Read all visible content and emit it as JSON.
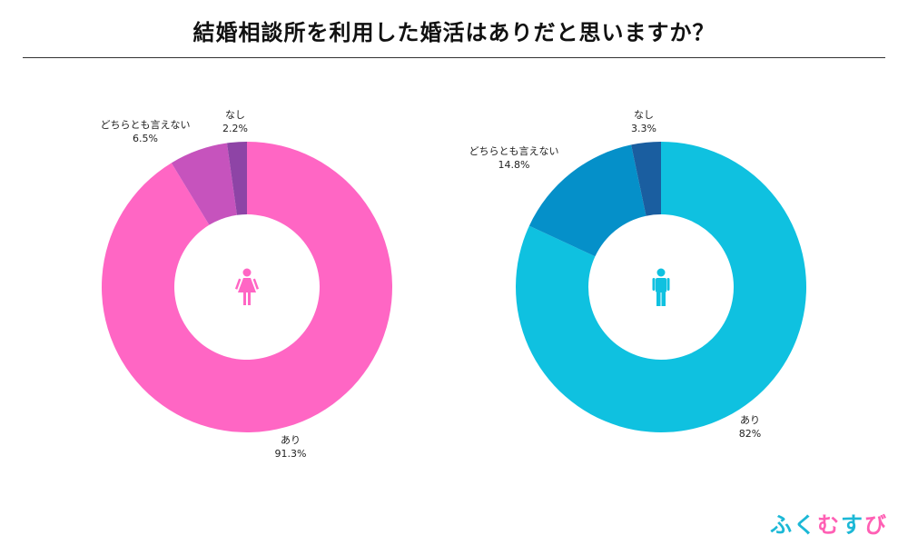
{
  "title": "結婚相談所を利用した婚活はありだと思いますか？",
  "brand": {
    "chars": [
      "ふ",
      "く",
      "む",
      "す",
      "び"
    ],
    "colors": [
      "#1CB8D6",
      "#1CB8D6",
      "#FF5FB4",
      "#1CB8D6",
      "#FF5FB4"
    ]
  },
  "chart_data": [
    {
      "type": "pie",
      "donut": true,
      "center_icon": "female-icon",
      "categories": [
        "あり",
        "どちらとも言えない",
        "なし"
      ],
      "values": [
        91.3,
        6.5,
        2.2
      ],
      "value_labels": [
        "91.3%",
        "6.5%",
        "2.2%"
      ],
      "colors": [
        "#FF66C4",
        "#C653BD",
        "#8E44A6"
      ]
    },
    {
      "type": "pie",
      "donut": true,
      "center_icon": "male-icon",
      "categories": [
        "あり",
        "どちらとも言えない",
        "なし"
      ],
      "values": [
        82,
        14.8,
        3.3
      ],
      "value_labels": [
        "82%",
        "14.8%",
        "3.3%"
      ],
      "colors": [
        "#0FC1E0",
        "#0590C9",
        "#1A5EA0"
      ]
    }
  ]
}
